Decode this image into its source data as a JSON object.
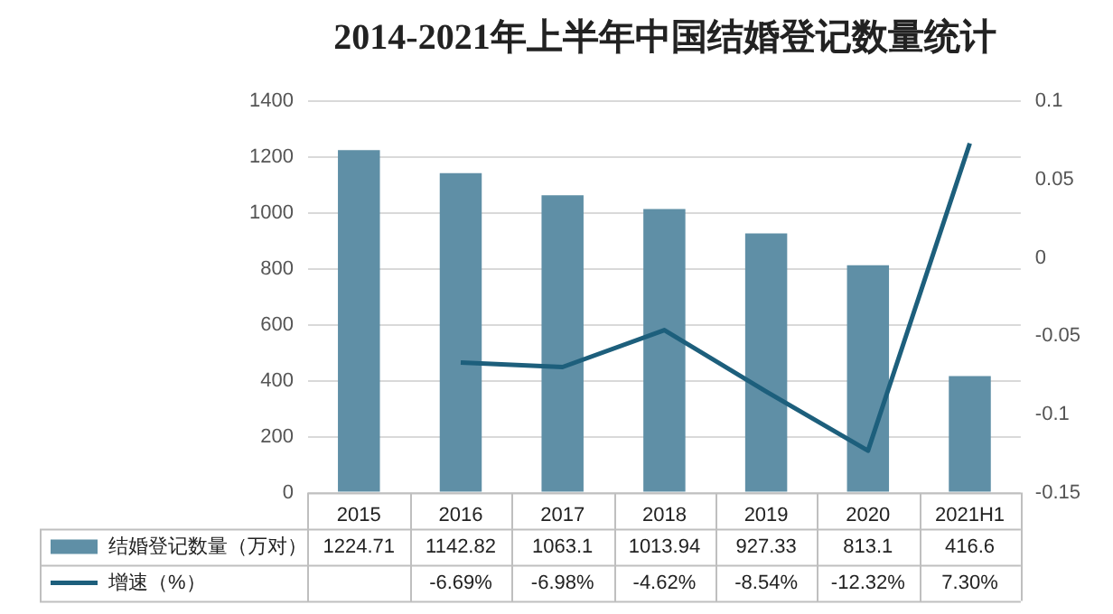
{
  "chart_data": {
    "type": "bar",
    "title": "2014-2021年上半年中国结婚登记数量统计",
    "categories": [
      "2015",
      "2016",
      "2017",
      "2018",
      "2019",
      "2020",
      "2021H1"
    ],
    "series": [
      {
        "name": "结婚登记数量（万对）",
        "axis": "y",
        "color": "#5f8fa6",
        "values": [
          1224.71,
          1142.82,
          1063.1,
          1013.94,
          927.33,
          813.1,
          416.6
        ],
        "value_labels": [
          "1224.71",
          "1142.82",
          "1063.1",
          "1013.94",
          "927.33",
          "813.1",
          "416.6"
        ]
      },
      {
        "name": "增速（%）",
        "type": "line",
        "axis": "y2",
        "color": "#1d5f7c",
        "values": [
          null,
          -0.0669,
          -0.0698,
          -0.0462,
          -0.0854,
          -0.1232,
          0.073
        ],
        "value_labels": [
          null,
          "-6.69%",
          "-6.98%",
          "-4.62%",
          "-8.54%",
          "-12.32%",
          "7.30%"
        ]
      }
    ],
    "ylim": [
      0,
      1400
    ],
    "yticks": [
      0,
      200,
      400,
      600,
      800,
      1000,
      1200,
      1400
    ],
    "y2lim": [
      -0.15,
      0.1
    ],
    "y2ticks": [
      -0.15,
      -0.1,
      -0.05,
      0,
      0.05,
      0.1
    ],
    "grid": "y",
    "legend": "bottom",
    "marker": "none",
    "line_style": "solid"
  }
}
